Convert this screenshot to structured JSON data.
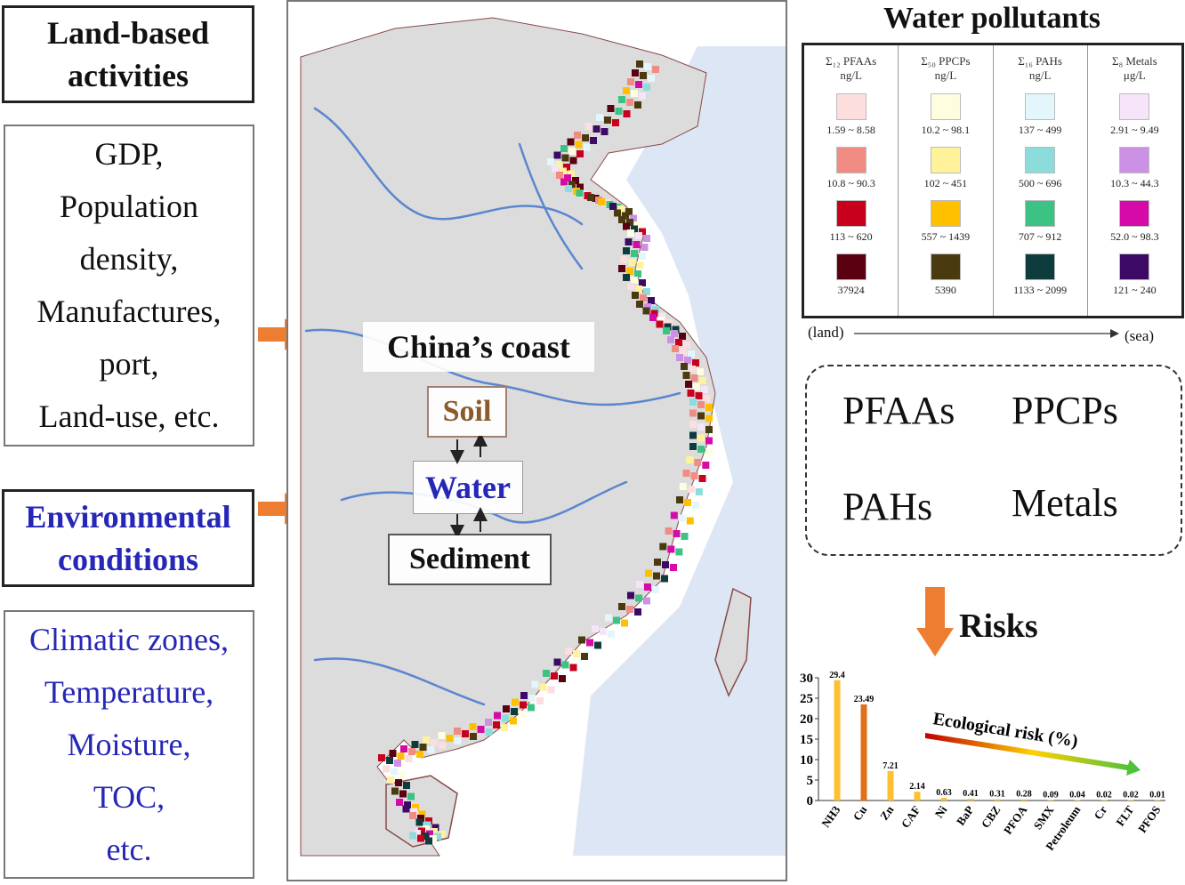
{
  "left_panel": {
    "land_heading": "Land-based activities",
    "land_items": [
      "GDP,",
      "Population",
      "density,",
      "Manufactures,",
      "port,",
      "Land-use, etc."
    ],
    "env_heading": "Environmental conditions",
    "env_items": [
      "Climatic zones,",
      "Temperature,",
      "Moisture,",
      "TOC,",
      "etc."
    ]
  },
  "map": {
    "title": "China’s coast",
    "soil": "Soil",
    "water": "Water",
    "sediment": "Sediment",
    "colors": {
      "land": "#dcdcdc",
      "sea": "#dde6f4",
      "river": "#5a86d0",
      "coast": "#8a4a4a"
    }
  },
  "legend": {
    "title": "Water pollutants",
    "columns": [
      {
        "name": "Σ₁₂ PFAAs",
        "unit": "ng/L",
        "items": [
          {
            "range": "1.59 ~ 8.58",
            "color": "#fcdede"
          },
          {
            "range": "10.8 ~ 90.3",
            "color": "#f08c84"
          },
          {
            "range": "113 ~ 620",
            "color": "#c8001e"
          },
          {
            "range": "37924",
            "color": "#5a0010"
          }
        ]
      },
      {
        "name": "Σ₅₀ PPCPs",
        "unit": "ng/L",
        "items": [
          {
            "range": "10.2 ~ 98.1",
            "color": "#fffde0"
          },
          {
            "range": "102 ~ 451",
            "color": "#fff29a"
          },
          {
            "range": "557 ~ 1439",
            "color": "#ffc000"
          },
          {
            "range": "5390",
            "color": "#4a3a10"
          }
        ]
      },
      {
        "name": "Σ₁₆ PAHs",
        "unit": "ng/L",
        "items": [
          {
            "range": "137 ~ 499",
            "color": "#e2f6fc"
          },
          {
            "range": "500 ~ 696",
            "color": "#8cdcdc"
          },
          {
            "range": "707 ~ 912",
            "color": "#3cc384"
          },
          {
            "range": "1133 ~ 2099",
            "color": "#0e3c3c"
          }
        ]
      },
      {
        "name": "Σ₈ Metals",
        "unit": "μg/L",
        "items": [
          {
            "range": "2.91 ~ 9.49",
            "color": "#f6e4f8"
          },
          {
            "range": "10.3 ~ 44.3",
            "color": "#cc90e4"
          },
          {
            "range": "52.0 ~ 98.3",
            "color": "#d60aa8"
          },
          {
            "range": "121 ~ 240",
            "color": "#3c0a64"
          }
        ]
      }
    ],
    "land_label": "(land)",
    "sea_label": "(sea)"
  },
  "pollutants": [
    "PFAAs",
    "PPCPs",
    "PAHs",
    "Metals"
  ],
  "risks_label": "Risks",
  "chart_data": {
    "type": "bar",
    "categories": [
      "NH3",
      "Cu",
      "Zn",
      "CAF",
      "Ni",
      "BaP",
      "CBZ",
      "PFOA",
      "SMX",
      "Petroleum",
      "Cr",
      "FLT",
      "PFOS"
    ],
    "values": [
      29.4,
      23.49,
      7.21,
      2.14,
      0.63,
      0.41,
      0.31,
      0.28,
      0.09,
      0.04,
      0.02,
      0.02,
      0.01
    ],
    "value_labels": [
      "29.4",
      "23.49",
      "7.21",
      "2.14",
      "0.63",
      "0.41",
      "0.31",
      "0.28",
      "0.09",
      "0.04",
      "0.02",
      "0.02",
      "0.01"
    ],
    "bar_colors": [
      "#ffc030",
      "#e0701a",
      "#ffc030",
      "#ffc030",
      "#ffc030",
      "#ffc030",
      "#ffc030",
      "#ffc030",
      "#ffc030",
      "#ffc030",
      "#ffc030",
      "#ffc030",
      "#ffc030"
    ],
    "annotation": "Ecological risk (%)",
    "ylim": [
      0,
      30
    ],
    "yticks": [
      0,
      5,
      10,
      15,
      20,
      25,
      30
    ],
    "xlabel": "",
    "ylabel": "",
    "grid": false
  }
}
